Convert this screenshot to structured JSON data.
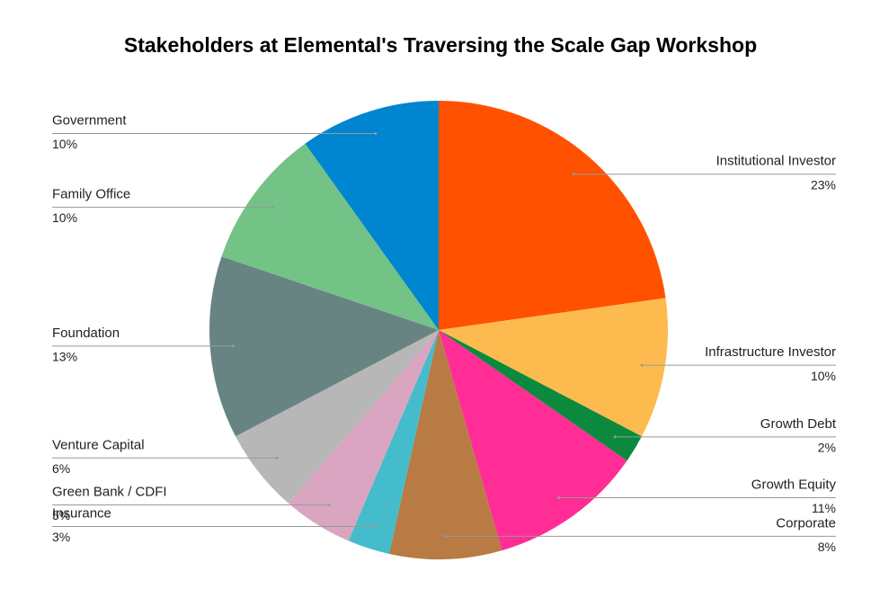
{
  "chart_data": {
    "type": "pie",
    "title": "Stakeholders at Elemental's Traversing the Scale Gap Workshop",
    "categories": [
      "Institutional Investor",
      "Infrastructure Investor",
      "Growth Debt",
      "Growth Equity",
      "Corporate",
      "Insurance",
      "Green Bank / CDFI",
      "Venture Capital",
      "Foundation",
      "Family Office",
      "Government"
    ],
    "values": [
      23,
      10,
      2,
      11,
      8,
      3,
      5,
      6,
      13,
      10,
      10
    ],
    "value_labels": [
      "23%",
      "10%",
      "2%",
      "11%",
      "8%",
      "3%",
      "5%",
      "6%",
      "13%",
      "10%",
      "10%"
    ],
    "colors": [
      "#ff5100",
      "#fdbb4f",
      "#0b8a3e",
      "#ff2d95",
      "#b87b43",
      "#45bccb",
      "#d9a5c0",
      "#b7b7b7",
      "#678483",
      "#73c386",
      "#0085d1"
    ]
  }
}
